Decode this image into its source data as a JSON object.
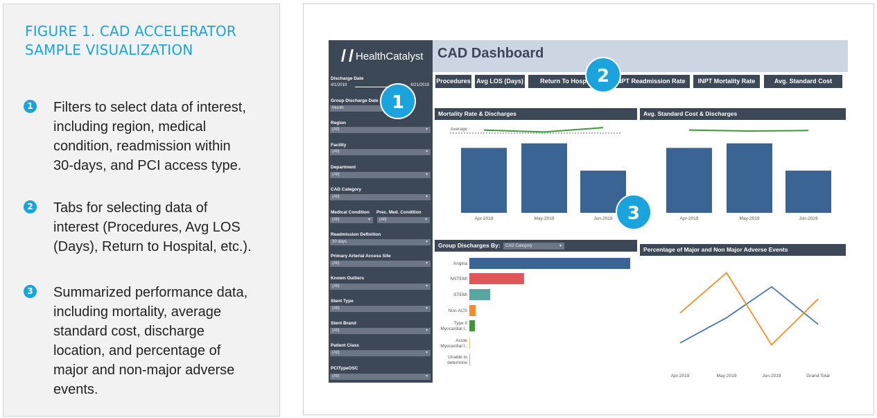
{
  "caption": {
    "title": "FIGURE 1. CAD ACCELERATOR SAMPLE VISUALIZATION",
    "notes": [
      {
        "num": "1",
        "text": "Filters to select data of interest, including region, medical condition, readmission within 30-days, and PCI access type."
      },
      {
        "num": "2",
        "text": "Tabs for selecting data of interest (Procedures, Avg LOS (Days), Return to Hospital, etc.)."
      },
      {
        "num": "3",
        "text": "Summarized performance data, including mortality, average standard cost, discharge location, and percentage of major and non-major adverse events."
      }
    ]
  },
  "dashboard": {
    "logo": "HealthCatalyst",
    "title": "CAD Dashboard",
    "filters": {
      "discharge_date_label": "Discharge Date",
      "date_start": "4/1/2019",
      "date_end": "6/21/2019",
      "group_discharge_date": {
        "label": "Group Discharge Date",
        "value": "Month"
      },
      "region": {
        "label": "Region",
        "value": "(All)"
      },
      "facility": {
        "label": "Facility",
        "value": "(All)"
      },
      "department": {
        "label": "Department",
        "value": "(All)"
      },
      "cad_category": {
        "label": "CAD Category",
        "value": "(All)"
      },
      "medical_condition": {
        "label": "Medical Condition",
        "value": "(All)"
      },
      "prec_med_condition": {
        "label": "Prec. Med. Condition",
        "value": "(All)"
      },
      "readmission_definition": {
        "label": "Readmission Definition",
        "value": "30 days"
      },
      "primary_arterial_access_site": {
        "label": "Primary Arterial Access Site",
        "value": "(All)"
      },
      "known_outliers": {
        "label": "Known Outliers",
        "value": "(All)"
      },
      "stent_type": {
        "label": "Stent Type",
        "value": "(All)"
      },
      "stent_brand": {
        "label": "Stent Brand",
        "value": "(All)"
      },
      "patient_class": {
        "label": "Patient Class",
        "value": "(All)"
      },
      "pci_type_osc": {
        "label": "PCITypeOSC",
        "value": "(All)"
      }
    },
    "tabs": [
      "Procedures",
      "Avg LOS (Days)",
      "Return To Hospital",
      "INPT Readmission Rate",
      "INPT Mortality Rate",
      "Avg. Standard Cost"
    ],
    "badges": [
      "1",
      "2",
      "3"
    ],
    "group_by_label": "Group Discharges By:",
    "group_by_value": "CAD Category"
  },
  "chart_data": [
    {
      "type": "bar",
      "title": "Mortality Rate & Discharges",
      "categories": [
        "Apr-2019",
        "May-2019",
        "Jun-2019"
      ],
      "series": [
        {
          "values": [
            100,
            107,
            65
          ]
        },
        {
          "values": [
            0.6,
            0.4,
            0.85
          ]
        }
      ],
      "reference_label": "Average",
      "reference_value": 0.5,
      "bar_color": "#3a6494",
      "line_color": "#3a9a3a"
    },
    {
      "type": "bar",
      "title": "Avg. Standard Cost & Discharges",
      "categories": [
        "Apr-2019",
        "May-2019",
        "Jun-2019"
      ],
      "series": [
        {
          "values": [
            100,
            107,
            65
          ]
        },
        {
          "values": [
            0.6,
            0.5,
            0.55
          ]
        }
      ],
      "bar_color": "#3a6494",
      "line_color": "#3a9a3a"
    },
    {
      "type": "bar",
      "orientation": "horizontal",
      "title": "Group Discharges By:",
      "categories": [
        "Angina",
        "NSTEMI",
        "STEMI",
        "Non-ACS",
        "Type II Myocardial I..",
        "Acute Myocardial I..",
        "Unable to determine"
      ],
      "values": [
        100,
        34,
        13,
        4,
        3.5,
        0.5,
        0.4
      ],
      "colors": [
        "#3a6494",
        "#e15759",
        "#59a6a0",
        "#f28e2b",
        "#3a9a3a",
        "#e8d44d",
        "#d9a0c8"
      ]
    },
    {
      "type": "line",
      "title": "Percentage of Major and Non Major Adverse Events",
      "categories": [
        "Apr-2019",
        "May-2019",
        "Jun-2019",
        "Grand Total"
      ],
      "series": [
        {
          "values": [
            0.15,
            0.42,
            0.75,
            0.35
          ],
          "color": "#4e79a7"
        },
        {
          "values": [
            0.47,
            0.9,
            0.13,
            0.62
          ],
          "color": "#f28e2b"
        }
      ]
    }
  ]
}
